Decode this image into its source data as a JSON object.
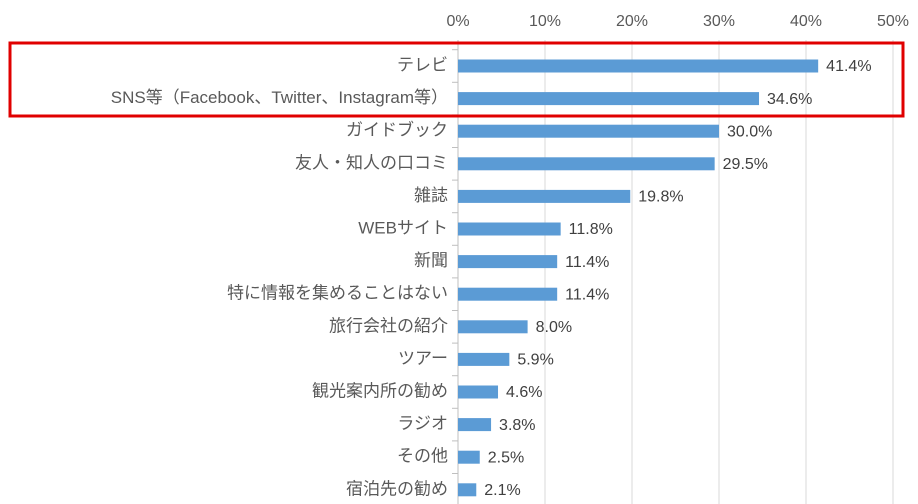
{
  "chart_data": {
    "type": "hbar",
    "categories": [
      "テレビ",
      "SNS等（Facebook、Twitter、Instagram等）",
      "ガイドブック",
      "友人・知人の口コミ",
      "雑誌",
      "WEBサイト",
      "新聞",
      "特に情報を集めることはない",
      "旅行会社の紹介",
      "ツアー",
      "観光案内所の勧め",
      "ラジオ",
      "その他",
      "宿泊先の勧め"
    ],
    "values": [
      41.4,
      34.6,
      30.0,
      29.5,
      19.8,
      11.8,
      11.4,
      11.4,
      8.0,
      5.9,
      4.6,
      3.8,
      2.5,
      2.1
    ],
    "value_labels": [
      "41.4%",
      "34.6%",
      "30.0%",
      "29.5%",
      "19.8%",
      "11.8%",
      "11.4%",
      "11.4%",
      "8.0%",
      "5.9%",
      "4.6%",
      "3.8%",
      "2.5%",
      "2.1%"
    ],
    "color": "#5b9bd5",
    "xlim": [
      0,
      50
    ],
    "xticks": [
      {
        "value": 0,
        "label": "0%"
      },
      {
        "value": 10,
        "label": "10%"
      },
      {
        "value": 20,
        "label": "20%"
      },
      {
        "value": 30,
        "label": "30%"
      },
      {
        "value": 40,
        "label": "40%"
      },
      {
        "value": 50,
        "label": "50%"
      }
    ],
    "grid": true
  }
}
